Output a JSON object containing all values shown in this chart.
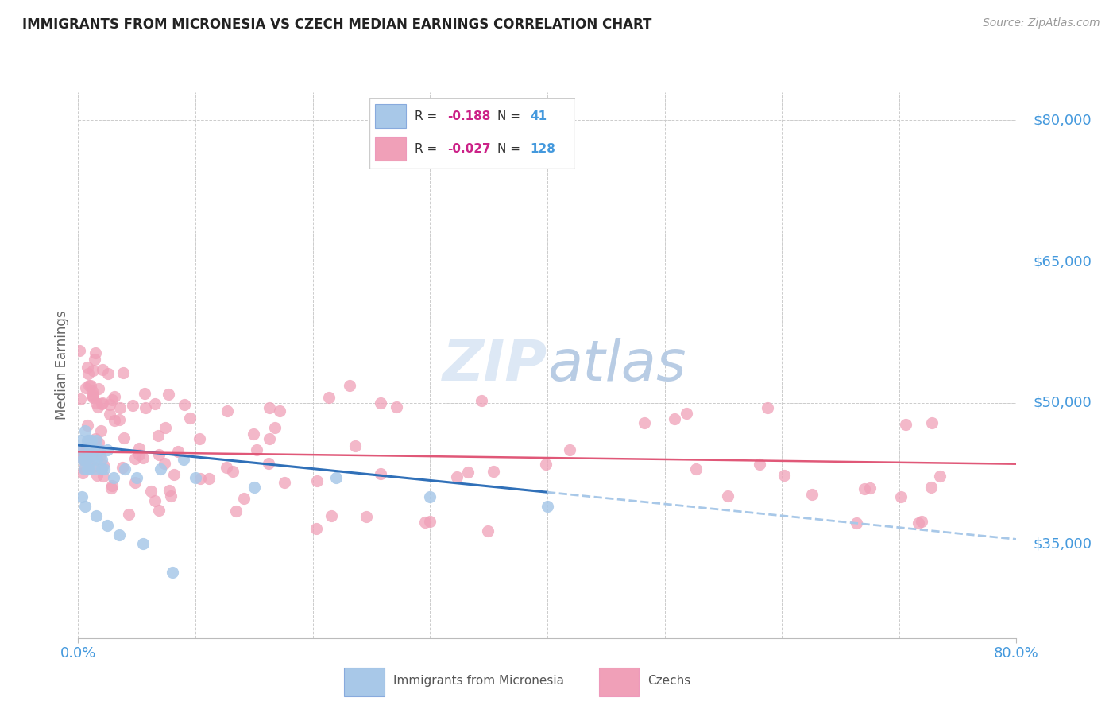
{
  "title": "IMMIGRANTS FROM MICRONESIA VS CZECH MEDIAN EARNINGS CORRELATION CHART",
  "source": "Source: ZipAtlas.com",
  "ylabel": "Median Earnings",
  "xmin": 0.0,
  "xmax": 80.0,
  "ymin": 25000,
  "ymax": 83000,
  "yticks": [
    35000,
    50000,
    65000,
    80000
  ],
  "ytick_labels": [
    "$35,000",
    "$50,000",
    "$65,000",
    "$80,000"
  ],
  "blue_R": -0.188,
  "blue_N": 41,
  "pink_R": -0.027,
  "pink_N": 128,
  "blue_marker_color": "#a8c8e8",
  "pink_marker_color": "#f0a0b8",
  "trend_blue_color": "#3070b8",
  "trend_pink_color": "#e05878",
  "dashed_color": "#a8c8e8",
  "title_fontsize": 12,
  "source_fontsize": 10,
  "axis_label_color": "#4499dd",
  "watermark_color": "#dde8f5",
  "legend_box_color": "#e8f0f8",
  "legend_text_color_dark": "#333333",
  "legend_r_color": "#cc2288",
  "legend_n_color": "#4499dd",
  "blue_trend_x0": 0.0,
  "blue_trend_x1": 80.0,
  "blue_trend_y0": 45500,
  "blue_trend_y1": 35500,
  "blue_solid_end_x": 40.0,
  "pink_trend_x0": 0.0,
  "pink_trend_x1": 80.0,
  "pink_trend_y0": 44800,
  "pink_trend_y1": 43500
}
